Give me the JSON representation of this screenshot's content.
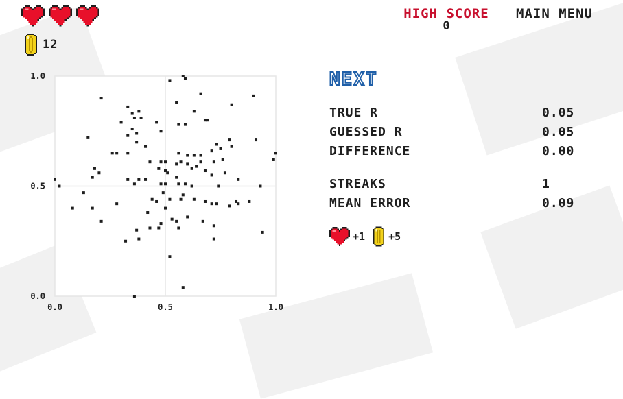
{
  "status": {
    "lives": 3,
    "coins": "12"
  },
  "header": {
    "high_score_label": "HIGH SCORE",
    "high_score_value": "0",
    "main_menu_label": "MAIN MENU"
  },
  "next_label": "NEXT",
  "stats": [
    {
      "label": "TRUE R",
      "value": "0.05"
    },
    {
      "label": "GUESSED R",
      "value": "0.05"
    },
    {
      "label": "DIFFERENCE",
      "value": "0.00"
    },
    {
      "label": "STREAKS",
      "value": "1"
    },
    {
      "label": "MEAN ERROR",
      "value": "0.09"
    }
  ],
  "reward": {
    "hearts": "+1",
    "coins": "+5"
  },
  "colors": {
    "heart": "#e8102a",
    "coin": "#f2d21b",
    "accent_red": "#c8102e",
    "next_blue": "#1f5fa8"
  },
  "chart_data": {
    "type": "scatter",
    "xlim": [
      0,
      1
    ],
    "ylim": [
      0,
      1
    ],
    "x_ticks": [
      "0.0",
      "0.5",
      "1.0"
    ],
    "y_ticks": [
      "0.0",
      "0.5",
      "1.0"
    ],
    "grid": true,
    "points": [
      [
        0.58,
        1.0
      ],
      [
        0.59,
        0.99
      ],
      [
        0.21,
        0.9
      ],
      [
        0.9,
        0.91
      ],
      [
        0.8,
        0.87
      ],
      [
        0.55,
        0.88
      ],
      [
        0.66,
        0.92
      ],
      [
        0.33,
        0.86
      ],
      [
        0.52,
        0.98
      ],
      [
        0.38,
        0.84
      ],
      [
        0.35,
        0.83
      ],
      [
        0.36,
        0.81
      ],
      [
        0.39,
        0.81
      ],
      [
        0.63,
        0.84
      ],
      [
        0.69,
        0.8
      ],
      [
        0.68,
        0.8
      ],
      [
        0.3,
        0.79
      ],
      [
        0.46,
        0.79
      ],
      [
        0.59,
        0.78
      ],
      [
        0.56,
        0.78
      ],
      [
        0.35,
        0.76
      ],
      [
        0.48,
        0.75
      ],
      [
        0.37,
        0.74
      ],
      [
        0.33,
        0.73
      ],
      [
        0.15,
        0.72
      ],
      [
        0.91,
        0.71
      ],
      [
        0.79,
        0.71
      ],
      [
        0.37,
        0.7
      ],
      [
        0.41,
        0.68
      ],
      [
        0.8,
        0.68
      ],
      [
        0.73,
        0.69
      ],
      [
        0.71,
        0.66
      ],
      [
        0.75,
        0.67
      ],
      [
        0.66,
        0.64
      ],
      [
        0.6,
        0.64
      ],
      [
        0.28,
        0.65
      ],
      [
        0.26,
        0.65
      ],
      [
        0.33,
        0.65
      ],
      [
        0.56,
        0.65
      ],
      [
        0.63,
        0.64
      ],
      [
        0.76,
        0.62
      ],
      [
        1.0,
        0.65
      ],
      [
        0.99,
        0.62
      ],
      [
        0.43,
        0.61
      ],
      [
        0.5,
        0.61
      ],
      [
        0.48,
        0.61
      ],
      [
        0.57,
        0.61
      ],
      [
        0.66,
        0.61
      ],
      [
        0.72,
        0.61
      ],
      [
        0.62,
        0.58
      ],
      [
        0.6,
        0.6
      ],
      [
        0.55,
        0.6
      ],
      [
        0.64,
        0.59
      ],
      [
        0.18,
        0.58
      ],
      [
        0.47,
        0.58
      ],
      [
        0.5,
        0.57
      ],
      [
        0.2,
        0.56
      ],
      [
        0.51,
        0.56
      ],
      [
        0.68,
        0.57
      ],
      [
        0.71,
        0.55
      ],
      [
        0.77,
        0.56
      ],
      [
        0.55,
        0.54
      ],
      [
        0.38,
        0.53
      ],
      [
        0.41,
        0.53
      ],
      [
        0.33,
        0.53
      ],
      [
        0.17,
        0.54
      ],
      [
        0.0,
        0.53
      ],
      [
        0.83,
        0.53
      ],
      [
        0.36,
        0.51
      ],
      [
        0.48,
        0.51
      ],
      [
        0.5,
        0.51
      ],
      [
        0.59,
        0.51
      ],
      [
        0.56,
        0.51
      ],
      [
        0.02,
        0.5
      ],
      [
        0.62,
        0.5
      ],
      [
        0.74,
        0.5
      ],
      [
        0.93,
        0.5
      ],
      [
        0.13,
        0.47
      ],
      [
        0.49,
        0.47
      ],
      [
        0.58,
        0.46
      ],
      [
        0.57,
        0.44
      ],
      [
        0.52,
        0.44
      ],
      [
        0.63,
        0.44
      ],
      [
        0.68,
        0.43
      ],
      [
        0.44,
        0.44
      ],
      [
        0.46,
        0.43
      ],
      [
        0.73,
        0.42
      ],
      [
        0.71,
        0.42
      ],
      [
        0.82,
        0.43
      ],
      [
        0.79,
        0.41
      ],
      [
        0.88,
        0.43
      ],
      [
        0.83,
        0.42
      ],
      [
        0.28,
        0.42
      ],
      [
        0.08,
        0.4
      ],
      [
        0.17,
        0.4
      ],
      [
        0.5,
        0.4
      ],
      [
        0.42,
        0.38
      ],
      [
        0.6,
        0.36
      ],
      [
        0.53,
        0.35
      ],
      [
        0.55,
        0.34
      ],
      [
        0.21,
        0.34
      ],
      [
        0.48,
        0.33
      ],
      [
        0.67,
        0.34
      ],
      [
        0.72,
        0.32
      ],
      [
        0.47,
        0.31
      ],
      [
        0.43,
        0.31
      ],
      [
        0.56,
        0.31
      ],
      [
        0.37,
        0.3
      ],
      [
        0.94,
        0.29
      ],
      [
        0.38,
        0.26
      ],
      [
        0.32,
        0.25
      ],
      [
        0.72,
        0.26
      ],
      [
        0.52,
        0.18
      ],
      [
        0.58,
        0.04
      ],
      [
        0.36,
        0.0
      ]
    ]
  }
}
